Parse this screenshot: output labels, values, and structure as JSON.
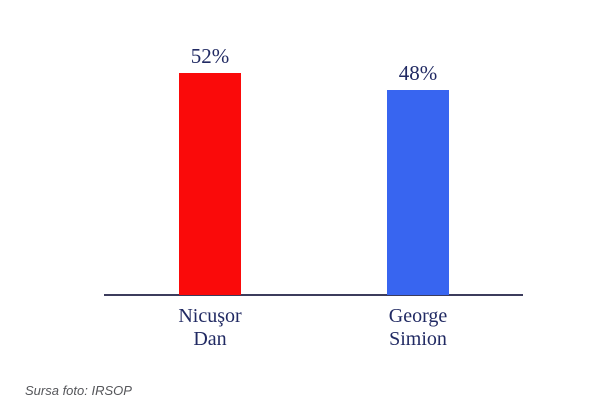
{
  "chart_data": {
    "type": "bar",
    "title": "",
    "xlabel": "",
    "ylabel": "",
    "categories": [
      "Nicuşor Dan",
      "George Simion"
    ],
    "category_lines": [
      [
        "Nicuşor",
        "Dan"
      ],
      [
        "George",
        "Simion"
      ]
    ],
    "values": [
      52,
      48
    ],
    "value_labels": [
      "52%",
      "48%"
    ],
    "bar_colors": [
      "#fa0a0a",
      "#3865f0"
    ],
    "label_color": "#212a63",
    "axis_color": "#3c3c5c",
    "ylim": [
      0,
      69
    ],
    "grid": false,
    "legend_position": "none"
  },
  "footer": {
    "source_note": "Sursa foto: IRSOP"
  }
}
